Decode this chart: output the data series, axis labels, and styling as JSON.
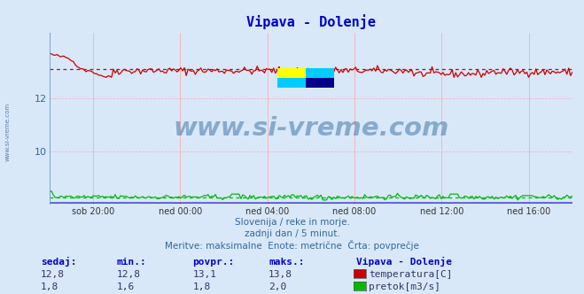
{
  "title": "Vipava - Dolenje",
  "title_color": "#0000cc",
  "bg_color": "#d8e8f8",
  "xlabel_ticks": [
    "sob 20:00",
    "ned 00:00",
    "ned 04:00",
    "ned 08:00",
    "ned 12:00",
    "ned 16:00"
  ],
  "tick_positions_frac": [
    0.0833,
    0.25,
    0.4167,
    0.5833,
    0.75,
    0.9167
  ],
  "ylim": [
    8.0,
    14.5
  ],
  "yticks": [
    10,
    12
  ],
  "temp_avg": 13.1,
  "temp_color": "#cc0000",
  "flow_color": "#00bb00",
  "height_color": "#0000cc",
  "watermark_text": "www.si-vreme.com",
  "watermark_color": "#4477aa",
  "sub_text1": "Slovenija / reke in morje.",
  "sub_text2": "zadnji dan / 5 minut.",
  "sub_text3": "Meritve: maksimalne  Enote: metrične  Črta: povprečje",
  "sub_color": "#336699",
  "left_label": "www.si-vreme.com",
  "left_label_color": "#336699",
  "n_points": 288,
  "table_header": [
    "sedaj:",
    "min.:",
    "povpr.:",
    "maks.:"
  ],
  "table_col1": [
    "12,8",
    "1,8"
  ],
  "table_col2": [
    "12,8",
    "1,6"
  ],
  "table_col3": [
    "13,1",
    "1,8"
  ],
  "table_col4": [
    "13,8",
    "2,0"
  ],
  "legend_title": "Vipava - Dolenje",
  "legend_items": [
    "temperatura[C]",
    "pretok[m3/s]"
  ],
  "legend_colors": [
    "#cc0000",
    "#00bb00"
  ],
  "logo_colors": [
    "#ffff00",
    "#00ccff",
    "#00ccff",
    "#000088"
  ],
  "grid_v_color": "#ffaaaa",
  "grid_h_color": "#ffaaaa"
}
